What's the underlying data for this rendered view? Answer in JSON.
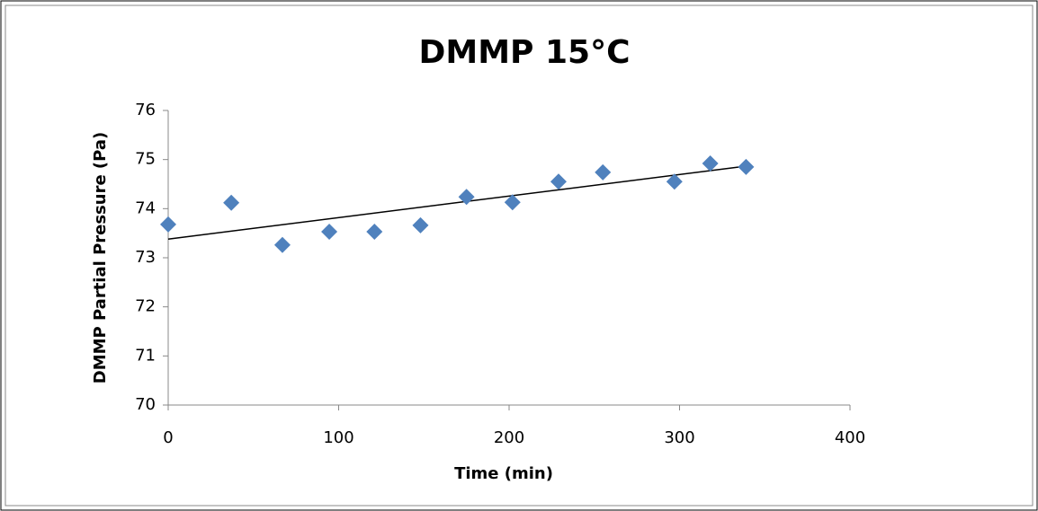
{
  "chart_data": {
    "type": "scatter",
    "title": "DMMP 15°C",
    "x_label": "Time (min)",
    "y_label": "DMMP Partial Pressure (Pa)",
    "series": [
      {
        "color": "#4f81bd",
        "x": [
          0,
          37,
          67,
          94.5,
          121,
          148,
          175,
          202,
          229,
          255,
          297,
          318,
          339
        ],
        "values": [
          73.68,
          74.12,
          73.26,
          73.53,
          73.53,
          73.66,
          74.24,
          74.13,
          74.55,
          74.74,
          74.55,
          74.92,
          74.85
        ]
      }
    ],
    "trendline": {
      "color": "#000000",
      "x": [
        0,
        340
      ],
      "values": [
        73.38,
        74.87
      ]
    },
    "xlim": [
      0,
      400
    ],
    "xticks": [
      0,
      100,
      200,
      300,
      400
    ],
    "ylim": [
      70,
      76
    ],
    "yticks": [
      70,
      71,
      72,
      73,
      74,
      75,
      76
    ],
    "grid": false
  }
}
